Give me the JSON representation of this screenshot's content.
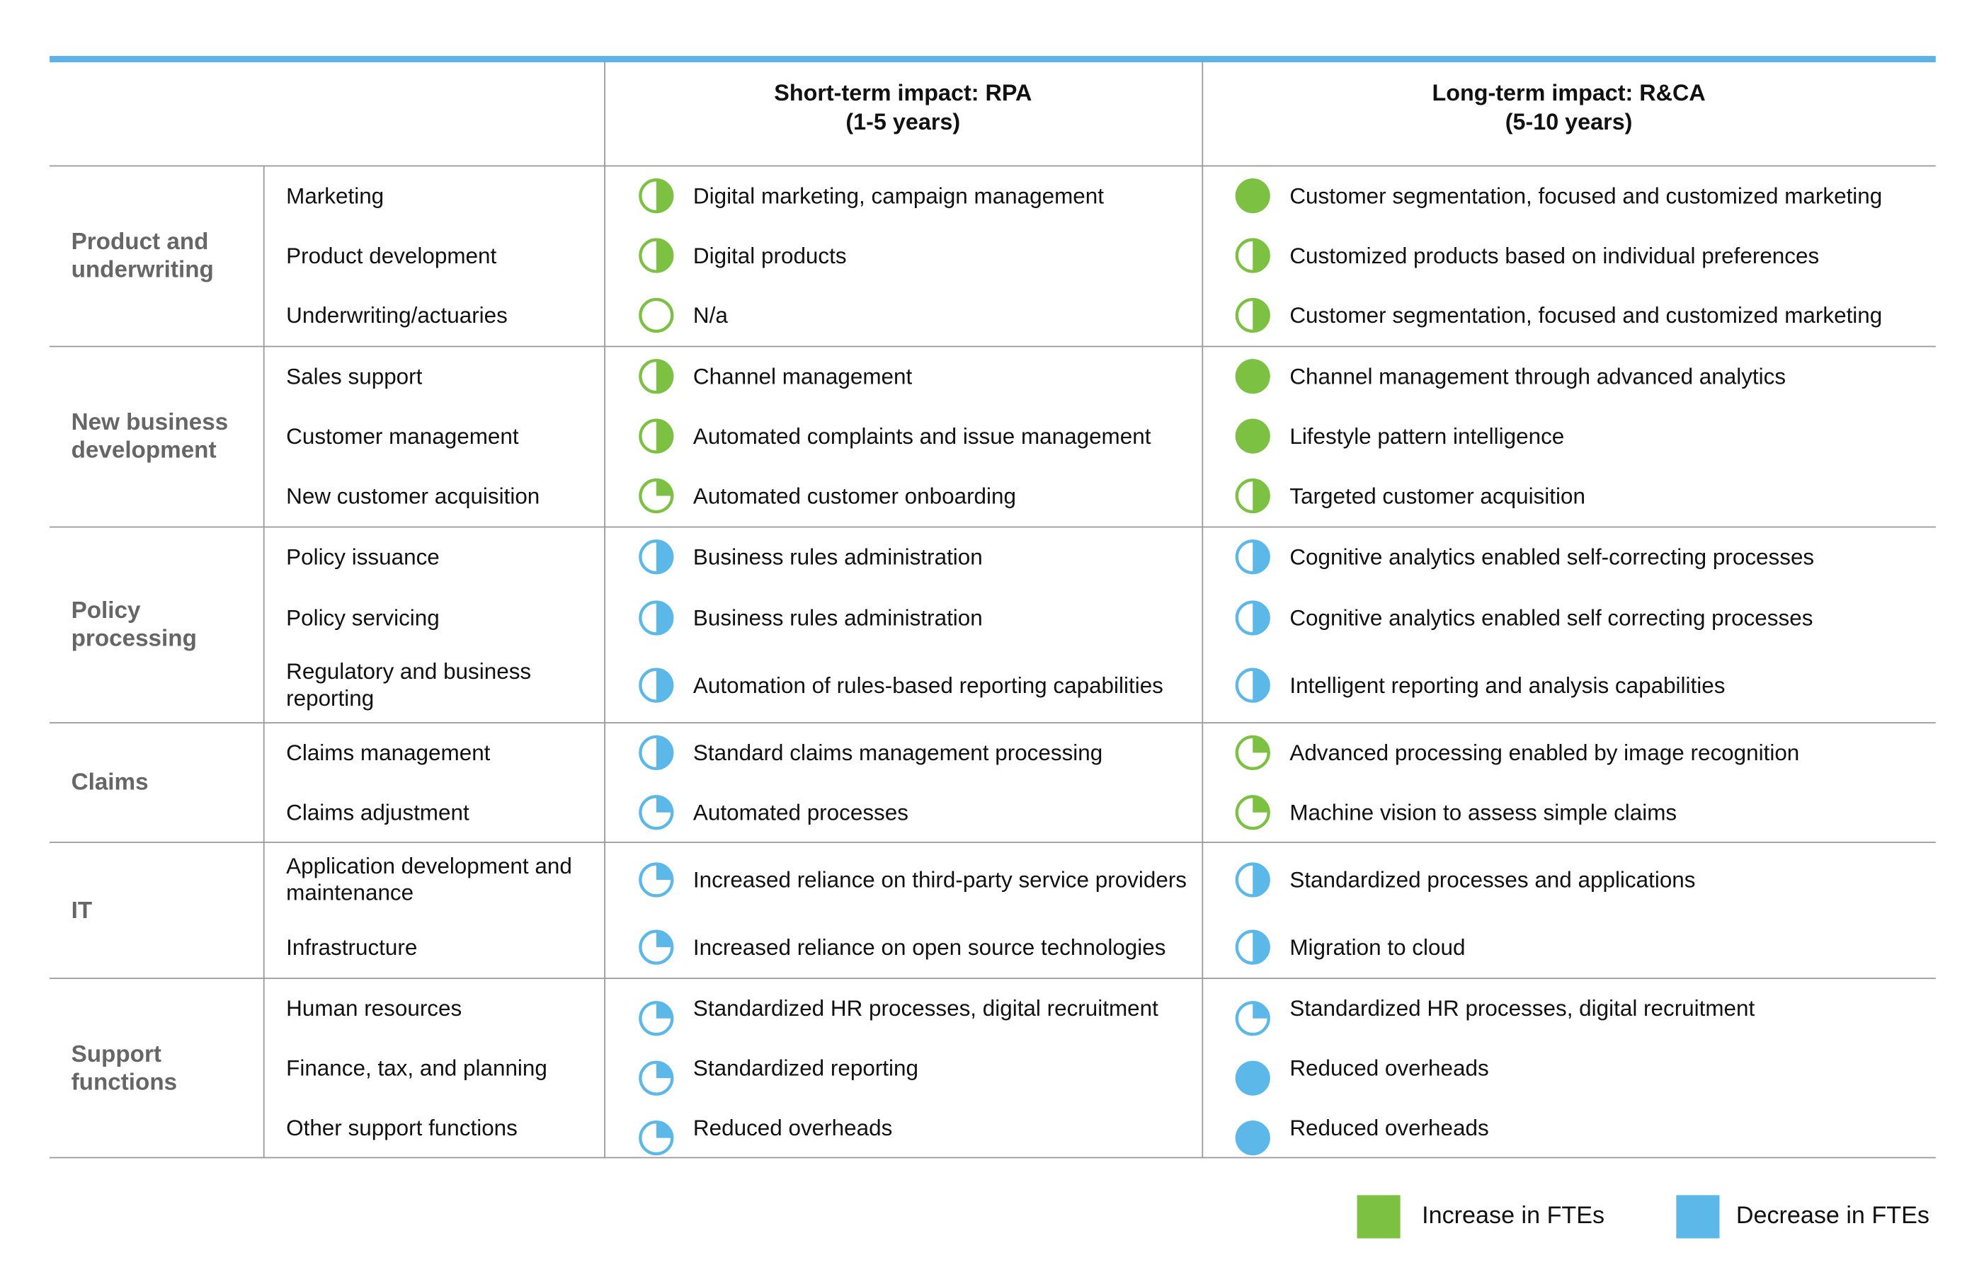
{
  "colors": {
    "increase": "#7dc142",
    "decrease": "#5bb8e8",
    "rule": "#5bb4e5"
  },
  "headers": {
    "short_term": "Short-term impact: RPA",
    "short_term_years": "(1-5 years)",
    "long_term": "Long-term impact: R&CA",
    "long_term_years": "(5-10 years)"
  },
  "groups": [
    {
      "category": "Product and underwriting",
      "rows": [
        {
          "function": "Marketing",
          "short": {
            "text": "Digital marketing, campaign management",
            "level": 0.5,
            "color": "increase"
          },
          "long": {
            "text": "Customer segmentation, focused and customized marketing",
            "level": 1,
            "color": "increase"
          }
        },
        {
          "function": "Product development",
          "short": {
            "text": "Digital products",
            "level": 0.5,
            "color": "increase"
          },
          "long": {
            "text": "Customized products based on individual preferences",
            "level": 0.5,
            "color": "increase"
          }
        },
        {
          "function": "Underwriting/actuaries",
          "short": {
            "text": "N/a",
            "level": 0,
            "color": "increase"
          },
          "long": {
            "text": "Customer segmentation, focused and customized marketing",
            "level": 0.5,
            "color": "increase"
          }
        }
      ]
    },
    {
      "category": "New business development",
      "rows": [
        {
          "function": "Sales support",
          "short": {
            "text": "Channel management",
            "level": 0.5,
            "color": "increase"
          },
          "long": {
            "text": "Channel management through advanced analytics",
            "level": 1,
            "color": "increase"
          }
        },
        {
          "function": "Customer management",
          "short": {
            "text": "Automated complaints and issue management",
            "level": 0.5,
            "color": "increase"
          },
          "long": {
            "text": "Lifestyle pattern intelligence",
            "level": 1,
            "color": "increase"
          }
        },
        {
          "function": "New customer acquisition",
          "short": {
            "text": "Automated customer onboarding",
            "level": 0.25,
            "color": "increase"
          },
          "long": {
            "text": "Targeted customer acquisition",
            "level": 0.5,
            "color": "increase"
          }
        }
      ]
    },
    {
      "category": "Policy processing",
      "rows": [
        {
          "function": "Policy issuance",
          "short": {
            "text": "Business rules administration",
            "level": 0.5,
            "color": "decrease"
          },
          "long": {
            "text": "Cognitive analytics enabled self-correcting processes",
            "level": 0.5,
            "color": "decrease"
          }
        },
        {
          "function": "Policy servicing",
          "short": {
            "text": "Business rules administration",
            "level": 0.5,
            "color": "decrease"
          },
          "long": {
            "text": "Cognitive analytics enabled self correcting processes",
            "level": 0.5,
            "color": "decrease"
          }
        },
        {
          "function": "Regulatory and business reporting",
          "short": {
            "text": "Automation of rules-based reporting capabilities",
            "level": 0.5,
            "color": "decrease"
          },
          "long": {
            "text": "Intelligent reporting and analysis capabilities",
            "level": 0.5,
            "color": "decrease"
          }
        }
      ]
    },
    {
      "category": "Claims",
      "rows": [
        {
          "function": "Claims management",
          "short": {
            "text": "Standard claims management processing",
            "level": 0.5,
            "color": "decrease"
          },
          "long": {
            "text": "Advanced processing enabled by image recognition",
            "level": 0.25,
            "color": "increase"
          }
        },
        {
          "function": "Claims adjustment",
          "short": {
            "text": "Automated processes",
            "level": 0.25,
            "color": "decrease"
          },
          "long": {
            "text": "Machine vision to assess simple claims",
            "level": 0.25,
            "color": "increase"
          }
        }
      ]
    },
    {
      "category": "IT",
      "rows": [
        {
          "function": "Application development and maintenance",
          "short": {
            "text": "Increased reliance on third-party service providers",
            "level": 0.25,
            "color": "decrease"
          },
          "long": {
            "text": "Standardized processes and applications",
            "level": 0.5,
            "color": "decrease"
          }
        },
        {
          "function": "Infrastructure",
          "short": {
            "text": "Increased reliance on open source technologies",
            "level": 0.25,
            "color": "decrease"
          },
          "long": {
            "text": "Migration to cloud",
            "level": 0.5,
            "color": "decrease"
          }
        }
      ]
    },
    {
      "category": "Support functions",
      "rows": [
        {
          "function": "Human resources",
          "short": {
            "text": "Standardized HR processes, digital recruitment",
            "level": 0.25,
            "color": "decrease"
          },
          "long": {
            "text": "Standardized HR processes, digital recruitment",
            "level": 0.25,
            "color": "decrease"
          }
        },
        {
          "function": "Finance, tax, and planning",
          "short": {
            "text": "Standardized reporting",
            "level": 0.25,
            "color": "decrease"
          },
          "long": {
            "text": "Reduced overheads",
            "level": 1,
            "color": "decrease"
          }
        },
        {
          "function": "Other support functions",
          "short": {
            "text": "Reduced overheads",
            "level": 0.25,
            "color": "decrease"
          },
          "long": {
            "text": "Reduced overheads",
            "level": 1,
            "color": "decrease"
          }
        }
      ]
    }
  ],
  "legend": [
    {
      "label": "Increase in FTEs",
      "color": "increase"
    },
    {
      "label": "Decrease in FTEs",
      "color": "decrease"
    }
  ]
}
